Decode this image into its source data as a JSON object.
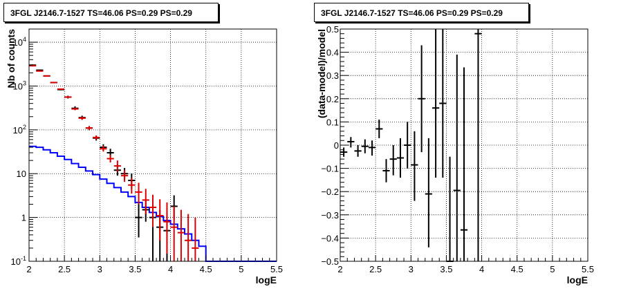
{
  "chart_data": [
    {
      "type": "step-histogram",
      "title": "3FGL J2146.7-1527 TS=46.06 PS=0.29 PS=0.29",
      "xlabel": "logE",
      "ylabel": "Nb of counts",
      "log_y": true,
      "xlim": [
        2,
        5.5
      ],
      "ylim": [
        0.1,
        20000
      ],
      "grid": true,
      "x_ticks": [
        "2",
        "2.5",
        "3",
        "3.5",
        "4",
        "4.5",
        "5",
        "5.5"
      ],
      "y_ticks": [
        "10^-1",
        "1",
        "10",
        "10^2",
        "10^3",
        "10^4"
      ],
      "model": {
        "color": "#0000ff",
        "edges": [
          2.0,
          2.1,
          2.2,
          2.3,
          2.4,
          2.5,
          2.6,
          2.7,
          2.8,
          2.9,
          3.0,
          3.1,
          3.2,
          3.3,
          3.4,
          3.5,
          3.6,
          3.7,
          3.8,
          3.9,
          4.0,
          4.1,
          4.2,
          4.3,
          4.4,
          4.5,
          4.6,
          4.7,
          4.8,
          4.9,
          5.0,
          5.1,
          5.2,
          5.3,
          5.4,
          5.5
        ],
        "values": [
          42,
          40,
          35,
          30,
          25,
          21,
          17,
          14,
          11.5,
          9.5,
          7.5,
          6.0,
          4.8,
          3.8,
          3.0,
          2.2,
          1.7,
          1.3,
          1.05,
          0.85,
          0.7,
          0.55,
          0.42,
          0.3,
          0.22,
          0.1,
          0.1,
          0.1,
          0.1,
          0.1,
          0.1,
          0.1,
          0.1,
          0.1,
          0.1
        ]
      },
      "series": [
        {
          "color": "#000000",
          "points": [
            {
              "x": 2.05,
              "y": 3000,
              "lo": 2900,
              "hi": 3100
            },
            {
              "x": 2.15,
              "y": 2300,
              "lo": 2250,
              "hi": 2350
            },
            {
              "x": 2.25,
              "y": 1700,
              "lo": 1650,
              "hi": 1750
            },
            {
              "x": 2.35,
              "y": 1200,
              "lo": 1160,
              "hi": 1240
            },
            {
              "x": 2.45,
              "y": 830,
              "lo": 800,
              "hi": 860
            },
            {
              "x": 2.55,
              "y": 560,
              "lo": 520,
              "hi": 600
            },
            {
              "x": 2.65,
              "y": 310,
              "lo": 280,
              "hi": 345
            },
            {
              "x": 2.75,
              "y": 190,
              "lo": 170,
              "hi": 210
            },
            {
              "x": 2.85,
              "y": 110,
              "lo": 98,
              "hi": 122
            },
            {
              "x": 2.95,
              "y": 65,
              "lo": 57,
              "hi": 74
            },
            {
              "x": 3.05,
              "y": 40,
              "lo": 34,
              "hi": 47
            },
            {
              "x": 3.15,
              "y": 30,
              "lo": 24,
              "hi": 37
            },
            {
              "x": 3.25,
              "y": 12,
              "lo": 9,
              "hi": 16
            },
            {
              "x": 3.35,
              "y": 10,
              "lo": 7.5,
              "hi": 13.5
            },
            {
              "x": 3.45,
              "y": 7,
              "lo": 4.5,
              "hi": 10
            },
            {
              "x": 3.55,
              "y": 1.0,
              "lo": 0.35,
              "hi": 2.3
            },
            {
              "x": 3.65,
              "y": 1.5,
              "lo": 0.8,
              "hi": 2.5
            },
            {
              "x": 3.75,
              "y": 1.0,
              "lo": 0.1,
              "hi": 2.3
            },
            {
              "x": 3.85,
              "y": 0.6,
              "lo": 0.1,
              "hi": 1.5
            },
            {
              "x": 3.95,
              "y": 0.5,
              "lo": 0.1,
              "hi": 1.3
            },
            {
              "x": 4.05,
              "y": 1.8,
              "lo": 0.9,
              "hi": 3.2
            }
          ]
        },
        {
          "color": "#dd0000",
          "points": [
            {
              "x": 2.05,
              "y": 2900,
              "lo": 2800,
              "hi": 3000
            },
            {
              "x": 2.15,
              "y": 2200,
              "lo": 2150,
              "hi": 2250
            },
            {
              "x": 2.25,
              "y": 1700,
              "lo": 1650,
              "hi": 1750
            },
            {
              "x": 2.35,
              "y": 1200,
              "lo": 1160,
              "hi": 1240
            },
            {
              "x": 2.45,
              "y": 850,
              "lo": 820,
              "hi": 880
            },
            {
              "x": 2.55,
              "y": 560,
              "lo": 530,
              "hi": 590
            },
            {
              "x": 2.65,
              "y": 300,
              "lo": 280,
              "hi": 320
            },
            {
              "x": 2.75,
              "y": 185,
              "lo": 170,
              "hi": 200
            },
            {
              "x": 2.85,
              "y": 110,
              "lo": 100,
              "hi": 120
            },
            {
              "x": 2.95,
              "y": 67,
              "lo": 60,
              "hi": 74
            },
            {
              "x": 3.05,
              "y": 37,
              "lo": 32,
              "hi": 43
            },
            {
              "x": 3.15,
              "y": 22,
              "lo": 18,
              "hi": 27
            },
            {
              "x": 3.25,
              "y": 15,
              "lo": 11,
              "hi": 20
            },
            {
              "x": 3.35,
              "y": 9,
              "lo": 6.5,
              "hi": 12
            },
            {
              "x": 3.45,
              "y": 5.5,
              "lo": 3.5,
              "hi": 8
            },
            {
              "x": 3.55,
              "y": 3.8,
              "lo": 2.0,
              "hi": 6.2
            },
            {
              "x": 3.65,
              "y": 2.5,
              "lo": 1.2,
              "hi": 4.5
            },
            {
              "x": 3.75,
              "y": 1.7,
              "lo": 0.6,
              "hi": 3.3
            },
            {
              "x": 3.85,
              "y": 1.1,
              "lo": 0.3,
              "hi": 2.6
            },
            {
              "x": 3.95,
              "y": 0.8,
              "lo": 0.15,
              "hi": 2.2
            },
            {
              "x": 4.05,
              "y": 0.6,
              "lo": 0.1,
              "hi": 1.8
            },
            {
              "x": 4.15,
              "y": 0.45,
              "lo": 0.1,
              "hi": 1.5
            },
            {
              "x": 4.25,
              "y": 0.3,
              "lo": 0.1,
              "hi": 1.2
            },
            {
              "x": 4.35,
              "y": 0.2,
              "lo": 0.1,
              "hi": 1.0
            }
          ]
        }
      ]
    },
    {
      "type": "scatter",
      "title": "3FGL J2146.7-1527 TS=46.06 PS=0.29 PS=0.29",
      "xlabel": "logE",
      "ylabel": "(data-model)/model",
      "xlim": [
        2,
        5.5
      ],
      "ylim": [
        -0.5,
        0.5
      ],
      "grid": true,
      "x_ticks": [
        "2",
        "2.5",
        "3",
        "3.5",
        "4",
        "4.5",
        "5",
        "5.5"
      ],
      "y_ticks": [
        "-0.5",
        "-0.4",
        "-0.3",
        "-0.2",
        "-0.1",
        "0",
        "0.1",
        "0.2",
        "0.3",
        "0.4",
        "0.5"
      ],
      "series": [
        {
          "color": "#000000",
          "points": [
            {
              "x": 2.05,
              "y": -0.03,
              "lo": -0.05,
              "hi": -0.01
            },
            {
              "x": 2.15,
              "y": 0.015,
              "lo": -0.01,
              "hi": 0.035
            },
            {
              "x": 2.25,
              "y": -0.025,
              "lo": -0.05,
              "hi": 0.0
            },
            {
              "x": 2.35,
              "y": -0.005,
              "lo": -0.035,
              "hi": 0.025
            },
            {
              "x": 2.45,
              "y": -0.01,
              "lo": -0.045,
              "hi": 0.02
            },
            {
              "x": 2.55,
              "y": 0.07,
              "lo": 0.03,
              "hi": 0.11
            },
            {
              "x": 2.65,
              "y": -0.11,
              "lo": -0.16,
              "hi": -0.06
            },
            {
              "x": 2.75,
              "y": -0.06,
              "lo": -0.13,
              "hi": 0.0
            },
            {
              "x": 2.85,
              "y": -0.055,
              "lo": -0.14,
              "hi": 0.03
            },
            {
              "x": 2.95,
              "y": 0.0,
              "lo": -0.1,
              "hi": 0.1
            },
            {
              "x": 3.05,
              "y": -0.085,
              "lo": -0.24,
              "hi": 0.06
            },
            {
              "x": 3.15,
              "y": 0.2,
              "lo": -0.03,
              "hi": 0.43
            },
            {
              "x": 3.25,
              "y": -0.21,
              "lo": -0.44,
              "hi": 0.03
            },
            {
              "x": 3.35,
              "y": 0.16,
              "lo": -0.14,
              "hi": 0.5
            },
            {
              "x": 3.45,
              "y": 0.18,
              "lo": -0.14,
              "hi": 0.5
            },
            {
              "x": 3.55,
              "y": -0.5,
              "lo": -0.5,
              "hi": -0.05
            },
            {
              "x": 3.65,
              "y": -0.195,
              "lo": -0.5,
              "hi": 0.39
            },
            {
              "x": 3.75,
              "y": -0.365,
              "lo": -0.5,
              "hi": 0.335
            },
            {
              "x": 3.95,
              "y": 0.48,
              "lo": -0.5,
              "hi": 0.5
            }
          ]
        }
      ]
    }
  ]
}
